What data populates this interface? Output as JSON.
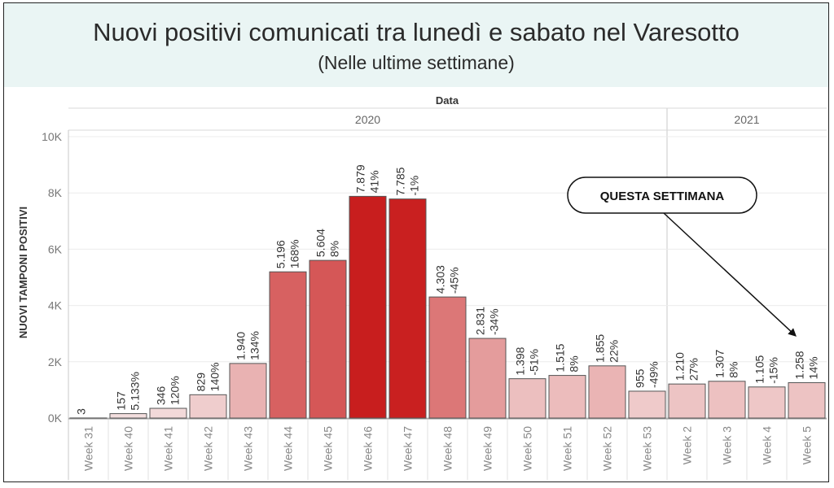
{
  "title": "Nuovi positivi comunicati tra lunedì e sabato nel Varesotto",
  "subtitle": "(Nelle ultime settimane)",
  "chart_data": {
    "type": "bar",
    "title": "Nuovi positivi comunicati tra lunedì e sabato nel Varesotto",
    "subtitle": "(Nelle ultime settimane)",
    "column_header": "Data",
    "ylabel": "NUOVI TAMPONI POSITIVI",
    "ylim": [
      0,
      10000
    ],
    "y_ticks": [
      0,
      2000,
      4000,
      6000,
      8000,
      10000
    ],
    "y_tick_labels": [
      "0K",
      "2K",
      "4K",
      "6K",
      "8K",
      "10K"
    ],
    "grid": true,
    "year_groups": [
      {
        "label": "2020",
        "categories": [
          "Week 31",
          "Week 40",
          "Week 41",
          "Week 42",
          "Week 43",
          "Week 44",
          "Week 45",
          "Week 46",
          "Week 47",
          "Week 48",
          "Week 49",
          "Week 50",
          "Week 51",
          "Week 52",
          "Week 53"
        ]
      },
      {
        "label": "2021",
        "categories": [
          "Week 2",
          "Week 3",
          "Week 4",
          "Week 5"
        ]
      }
    ],
    "categories": [
      "Week 31",
      "Week 40",
      "Week 41",
      "Week 42",
      "Week 43",
      "Week 44",
      "Week 45",
      "Week 46",
      "Week 47",
      "Week 48",
      "Week 49",
      "Week 50",
      "Week 51",
      "Week 52",
      "Week 53",
      "Week 2",
      "Week 3",
      "Week 4",
      "Week 5"
    ],
    "values": [
      3,
      157,
      346,
      829,
      1940,
      5196,
      5604,
      7879,
      7785,
      4303,
      2831,
      1398,
      1515,
      1855,
      955,
      1210,
      1307,
      1105,
      1258
    ],
    "value_labels": [
      "3",
      "157",
      "346",
      "829",
      "1.940",
      "5.196",
      "5.604",
      "7.879",
      "7.785",
      "4.303",
      "2.831",
      "1.398",
      "1.515",
      "1.855",
      "955",
      "1.210",
      "1.307",
      "1.105",
      "1.258"
    ],
    "pct_labels": [
      "",
      "5.133%",
      "120%",
      "140%",
      "134%",
      "168%",
      "8%",
      "41%",
      "-1%",
      "-45%",
      "-34%",
      "-51%",
      "8%",
      "22%",
      "-49%",
      "27%",
      "8%",
      "-15%",
      "14%"
    ],
    "annotation": {
      "text": "QUESTA SETTIMANA",
      "target": "Week 5"
    }
  }
}
